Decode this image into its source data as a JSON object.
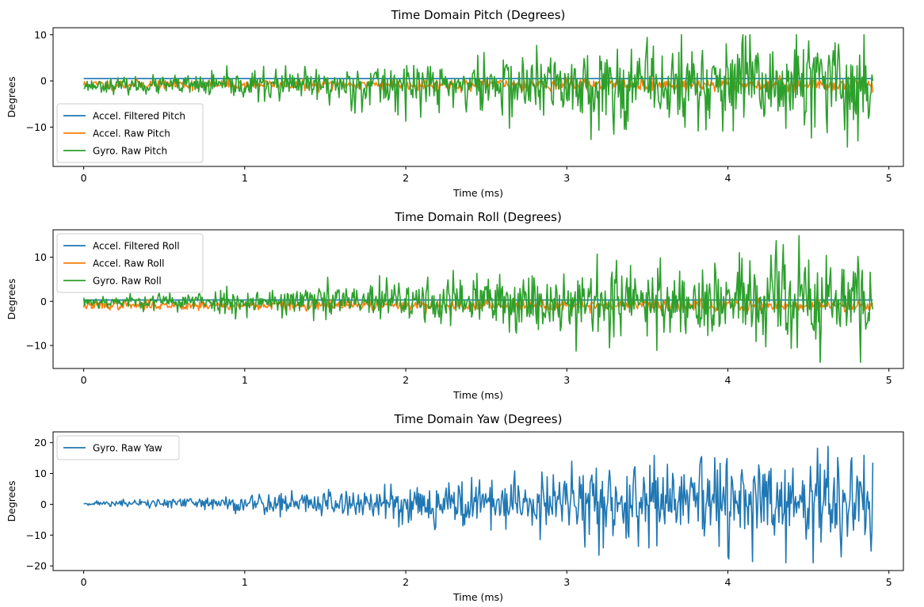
{
  "chart_data": [
    {
      "type": "line",
      "title": "Time Domain Pitch (Degrees)",
      "xlabel": "Time (ms)",
      "ylabel": "Degrees",
      "xlim": [
        -0.19,
        5.09
      ],
      "ylim": [
        -18.5,
        11.5
      ],
      "xticks": [
        0,
        1,
        2,
        3,
        4,
        5
      ],
      "yticks": [
        -10,
        0,
        10
      ],
      "legend": "lower-left",
      "samples": 900,
      "x_range": [
        0,
        4.9
      ],
      "series": [
        {
          "name": "Accel. Filtered Pitch",
          "color": "#1f77b4",
          "kind": "constant",
          "level": 0.5
        },
        {
          "name": "Accel. Raw Pitch",
          "color": "#ff7f0e",
          "kind": "noise",
          "center": -0.8,
          "amp_start": 0.5,
          "amp_end": 0.8,
          "seed": 11
        },
        {
          "name": "Gyro. Raw Pitch",
          "color": "#2ca02c",
          "kind": "noise",
          "center": -1.0,
          "amp_start": 0.6,
          "amp_end": 6.2,
          "min": -17.5,
          "max": 10.0,
          "seed": 23
        }
      ]
    },
    {
      "type": "line",
      "title": "Time Domain Roll (Degrees)",
      "xlabel": "Time (ms)",
      "ylabel": "Degrees",
      "xlim": [
        -0.19,
        5.09
      ],
      "ylim": [
        -15.2,
        16.2
      ],
      "xticks": [
        0,
        1,
        2,
        3,
        4,
        5
      ],
      "yticks": [
        -10,
        0,
        10
      ],
      "legend": "upper-left",
      "samples": 900,
      "x_range": [
        0,
        4.9
      ],
      "series": [
        {
          "name": "Accel. Filtered Roll",
          "color": "#1f77b4",
          "kind": "constant",
          "level": 0.3
        },
        {
          "name": "Accel. Raw Roll",
          "color": "#ff7f0e",
          "kind": "noise",
          "center": -0.9,
          "amp_start": 0.5,
          "amp_end": 0.7,
          "seed": 37
        },
        {
          "name": "Gyro. Raw Roll",
          "color": "#2ca02c",
          "kind": "noise",
          "center": 0.0,
          "amp_start": 0.6,
          "amp_end": 6.0,
          "min": -13.8,
          "max": 15.0,
          "seed": 53
        }
      ]
    },
    {
      "type": "line",
      "title": "Time Domain Yaw (Degrees)",
      "xlabel": "Time (ms)",
      "ylabel": "Degrees",
      "xlim": [
        -0.19,
        5.09
      ],
      "ylim": [
        -21.5,
        23.5
      ],
      "xticks": [
        0,
        1,
        2,
        3,
        4,
        5
      ],
      "yticks": [
        -20,
        -10,
        0,
        10,
        20
      ],
      "legend": "upper-left",
      "samples": 900,
      "x_range": [
        0,
        4.9
      ],
      "series": [
        {
          "name": "Gyro. Raw Yaw",
          "color": "#1f77b4",
          "kind": "noise",
          "center": 0.3,
          "amp_start": 0.3,
          "amp_end": 8.5,
          "min": -19.0,
          "max": 21.5,
          "seed": 71
        }
      ]
    }
  ]
}
